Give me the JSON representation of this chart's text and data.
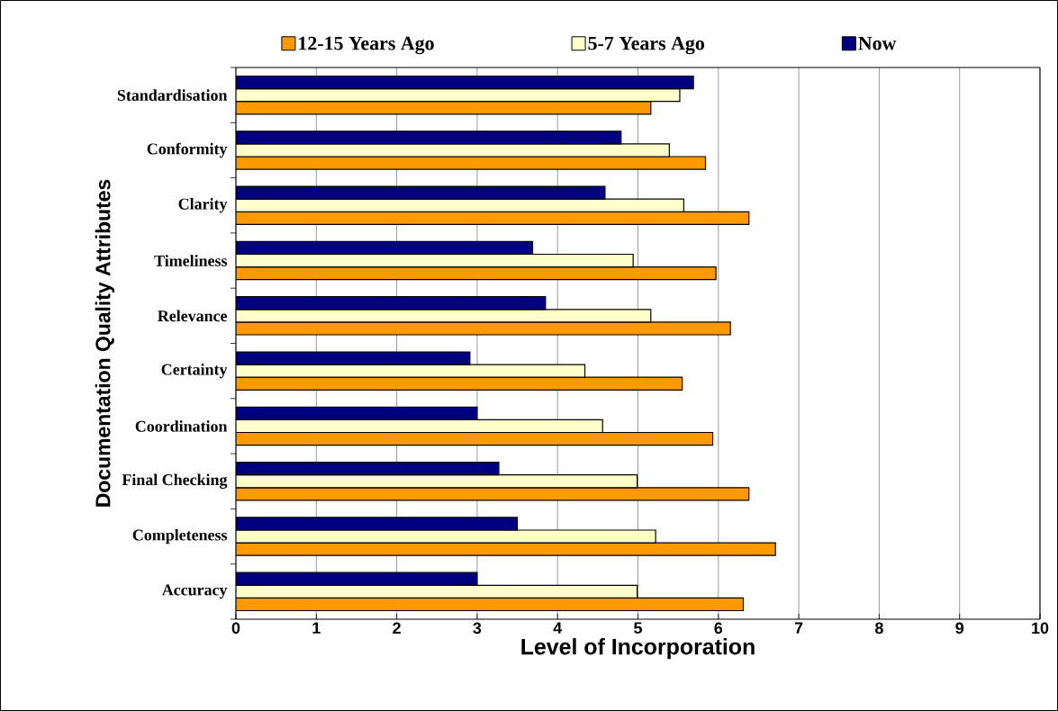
{
  "chart_data": {
    "type": "bar",
    "orientation": "horizontal",
    "xlabel": "Level of Incorporation",
    "ylabel": "Documentation Quality Attributes",
    "categories": [
      "Standardisation",
      "Conformity",
      "Clarity",
      "Timeliness",
      "Relevance",
      "Certainty",
      "Coordination",
      "Final Checking",
      "Completeness",
      "Accuracy"
    ],
    "series": [
      {
        "name": "12-15 Years Ago",
        "color": "#ff9900",
        "values": [
          5.16,
          5.84,
          6.38,
          5.97,
          6.15,
          5.55,
          5.93,
          6.38,
          6.71,
          6.31
        ]
      },
      {
        "name": "5-7 Years Ago",
        "color": "#ffffcc",
        "values": [
          5.52,
          5.39,
          5.57,
          4.94,
          5.16,
          4.34,
          4.56,
          4.99,
          5.22,
          4.99
        ]
      },
      {
        "name": "Now",
        "color": "#000080",
        "values": [
          5.69,
          4.79,
          4.59,
          3.69,
          3.85,
          2.91,
          3.0,
          3.27,
          3.5,
          3.0
        ]
      }
    ],
    "xlim": [
      0,
      10
    ],
    "xticks": [
      0,
      1,
      2,
      3,
      4,
      5,
      6,
      7,
      8,
      9,
      10
    ],
    "grid": "x",
    "legend": "top"
  }
}
